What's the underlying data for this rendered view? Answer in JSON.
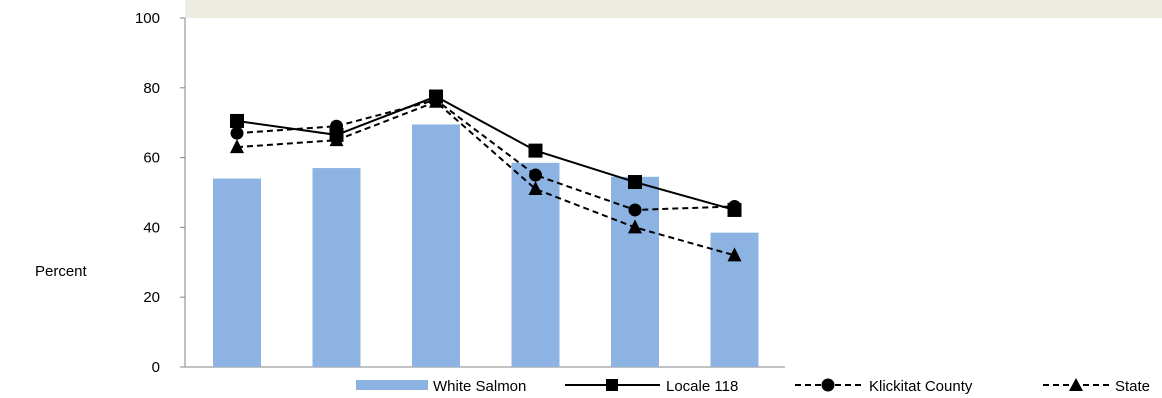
{
  "chart_data": {
    "type": "bar",
    "ylabel": "Percent",
    "ylim": [
      0,
      100
    ],
    "yticks": [
      0,
      20,
      40,
      60,
      80,
      100
    ],
    "categories_count": 6,
    "bar_color": "#8db3e2",
    "bars": {
      "name": "White Salmon",
      "values": [
        54,
        57,
        69.5,
        58.5,
        54.5,
        38.5
      ]
    },
    "series": [
      {
        "name": "Locale 118",
        "marker": "square",
        "dash": "solid",
        "values": [
          70.5,
          66.5,
          77.5,
          62,
          53,
          45
        ]
      },
      {
        "name": "Klickitat County",
        "marker": "circle",
        "dash": "dashed",
        "values": [
          67,
          69,
          76.5,
          55,
          45,
          46
        ]
      },
      {
        "name": "State",
        "marker": "triangle",
        "dash": "dashed",
        "values": [
          63,
          65,
          76,
          51,
          40,
          32
        ]
      }
    ],
    "legend_position": "bottom"
  }
}
